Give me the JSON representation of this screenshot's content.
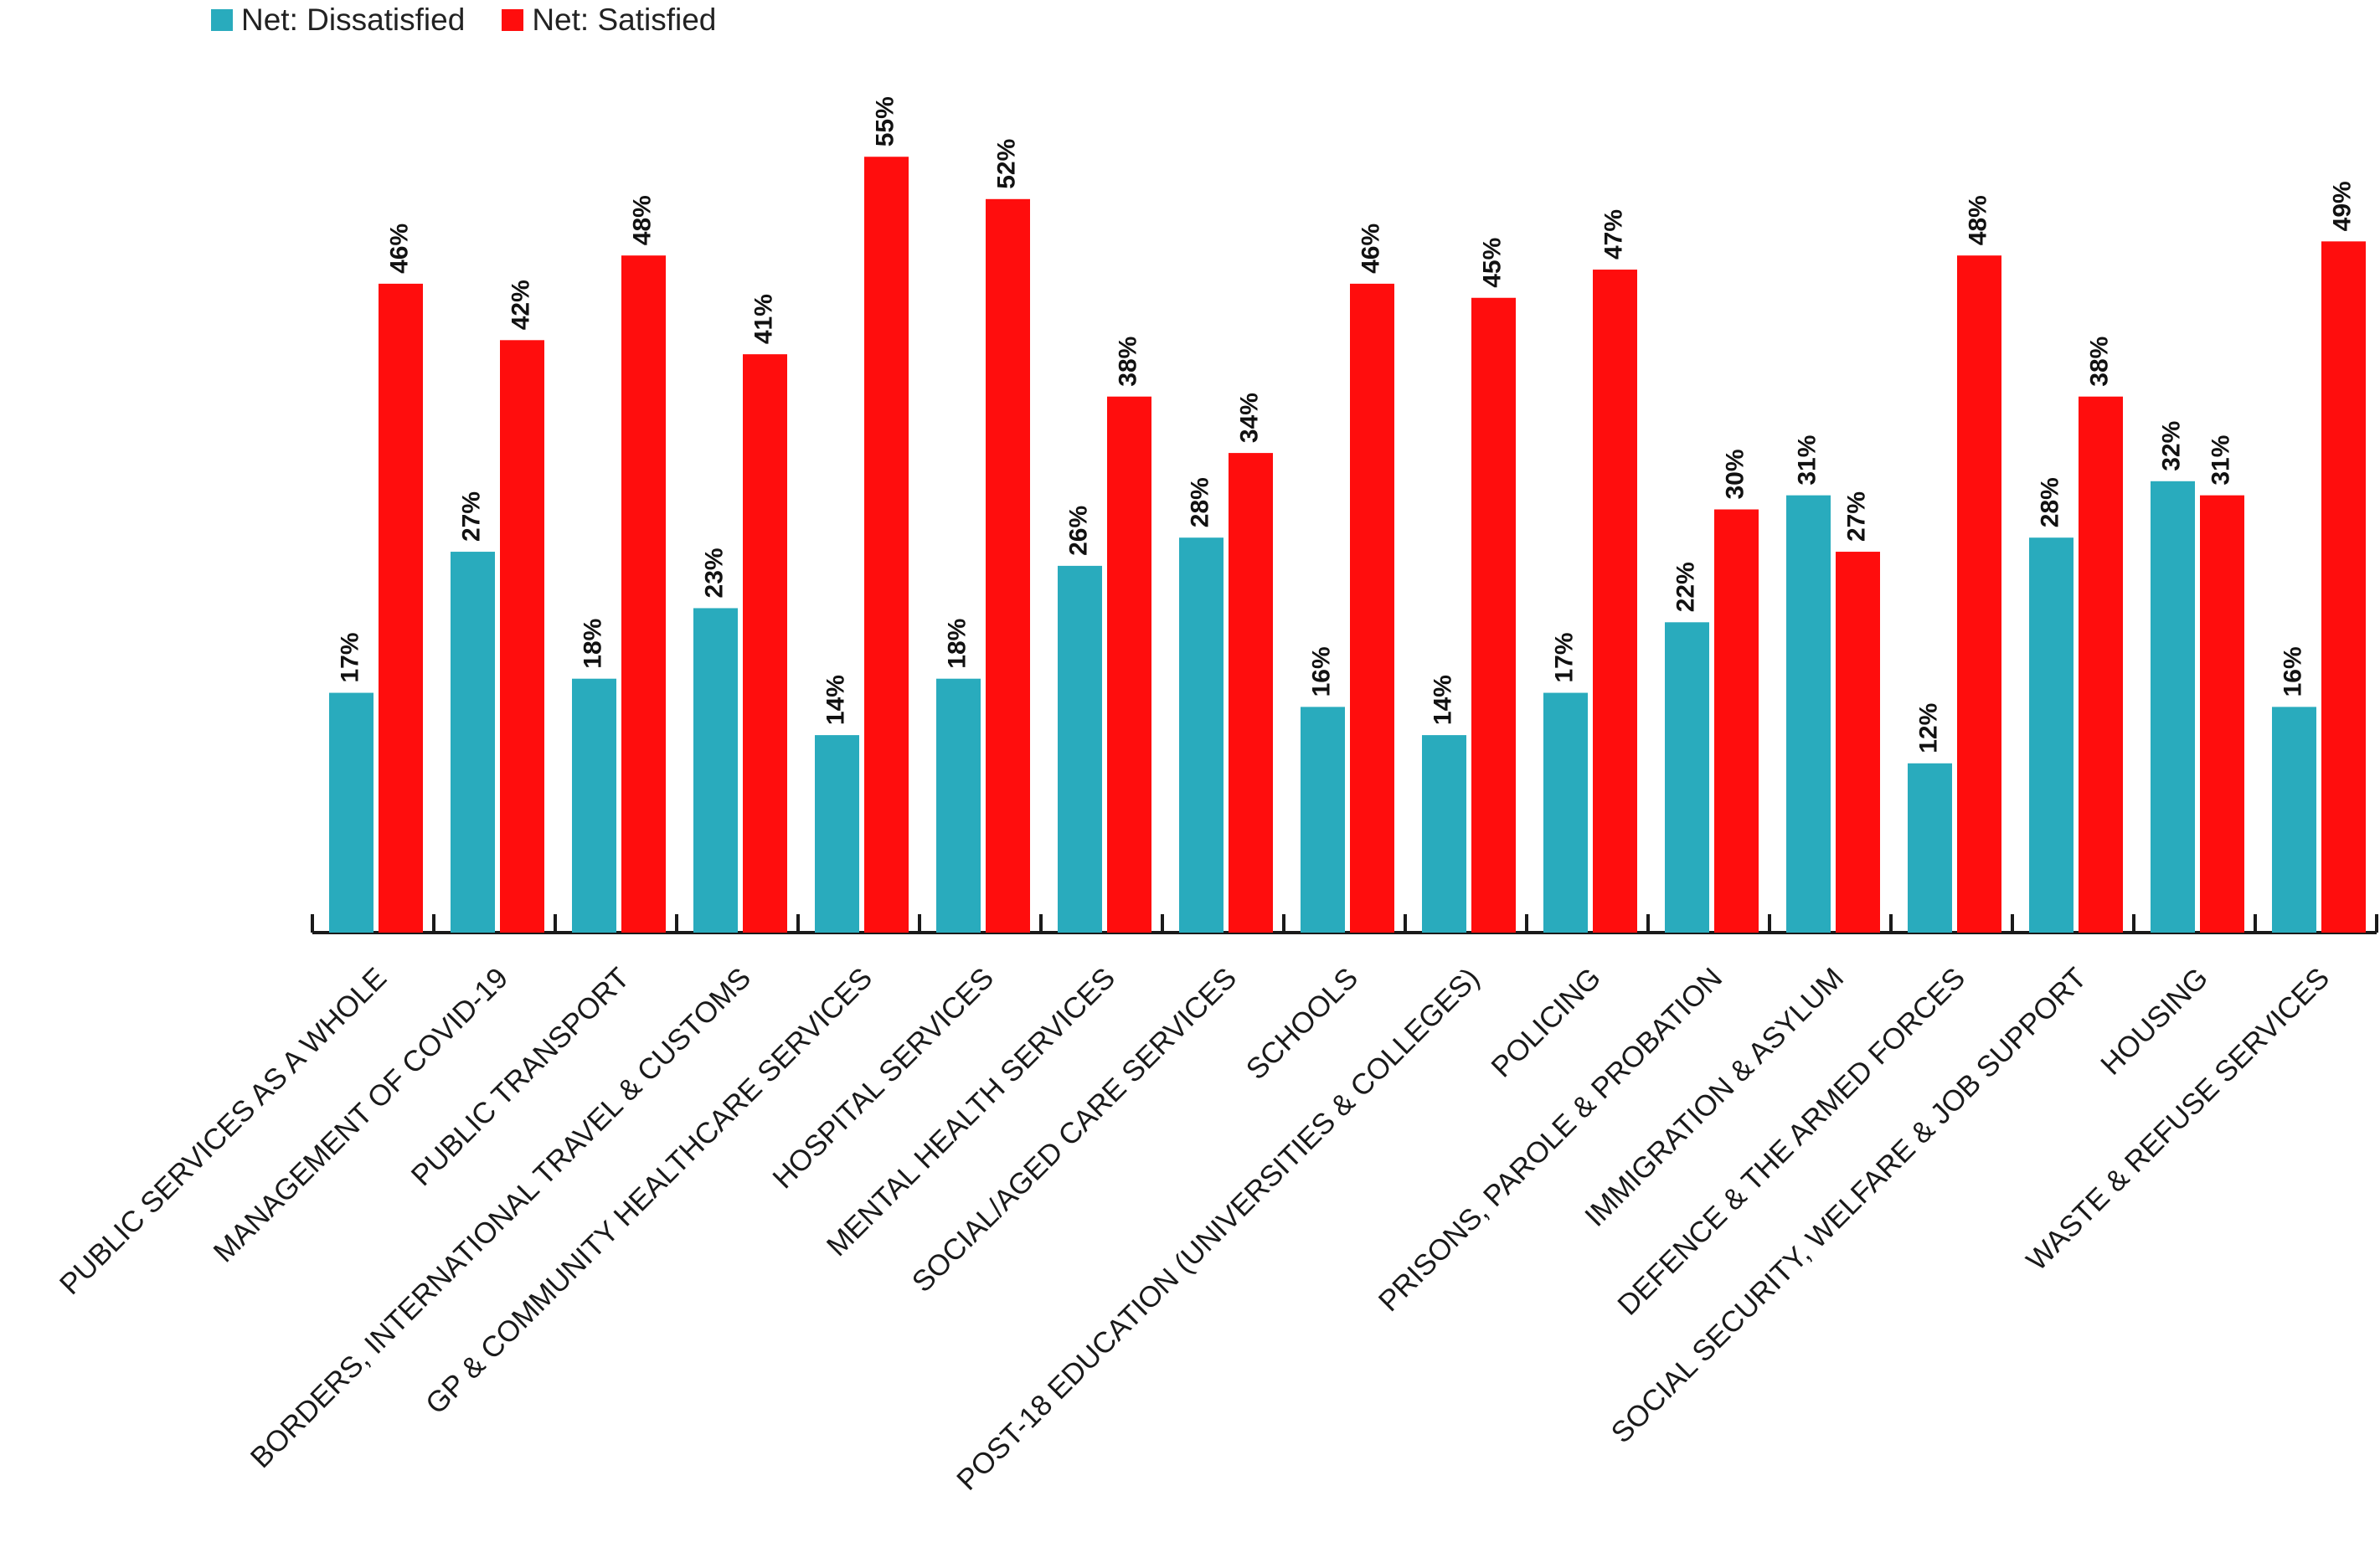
{
  "chart_data": {
    "type": "bar",
    "categories": [
      "PUBLIC SERVICES AS A WHOLE",
      "MANAGEMENT OF COVID-19",
      "PUBLIC TRANSPORT",
      "BORDERS, INTERNATIONAL TRAVEL & CUSTOMS",
      "GP & COMMUNITY HEALTHCARE SERVICES",
      "HOSPITAL SERVICES",
      "MENTAL HEALTH SERVICES",
      "SOCIAL/AGED CARE SERVICES",
      "SCHOOLS",
      "POST-18 EDUCATION (UNIVERSITIES & COLLEGES)",
      "POLICING",
      "PRISONS, PAROLE & PROBATION",
      "IMMIGRATION & ASYLUM",
      "DEFENCE & THE ARMED FORCES",
      "SOCIAL SECURITY, WELFARE & JOB SUPPORT",
      "HOUSING",
      "WASTE & REFUSE SERVICES"
    ],
    "series": [
      {
        "name": "Net: Dissatisfied",
        "color": "#29abbd",
        "values": [
          17,
          27,
          18,
          23,
          14,
          18,
          26,
          28,
          16,
          14,
          17,
          22,
          31,
          12,
          28,
          32,
          16
        ],
        "labels": [
          "17%",
          "27%",
          "18%",
          "23%",
          "14%",
          "18%",
          "26%",
          "28%",
          "16%",
          "14%",
          "17%",
          "22%",
          "31%",
          "12%",
          "28%",
          "32%",
          "16%"
        ]
      },
      {
        "name": "Net: Satisfied",
        "color": "#ff0d0d",
        "values": [
          46,
          42,
          48,
          41,
          55,
          52,
          38,
          34,
          46,
          45,
          47,
          30,
          27,
          48,
          38,
          31,
          49
        ],
        "labels": [
          "46%",
          "42%",
          "48%",
          "41%",
          "55%",
          "52%",
          "38%",
          "34%",
          "46%",
          "45%",
          "47%",
          "30%",
          "27%",
          "48%",
          "38%",
          "31%",
          "49%"
        ]
      }
    ],
    "ylim": [
      0,
      60
    ],
    "legend_position": "top-left",
    "grid": false
  }
}
